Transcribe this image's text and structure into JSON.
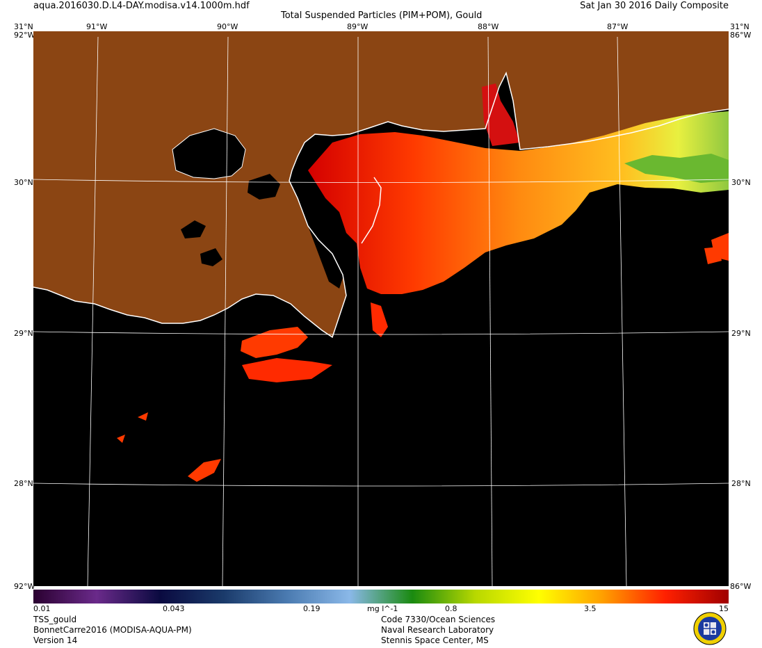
{
  "header": {
    "filename": "aqua.2016030.D.L4-DAY.modisa.v14.1000m.hdf",
    "title": "Total Suspended Particles (PIM+POM), Gould",
    "date": "Sat Jan 30 2016 Daily Composite"
  },
  "map": {
    "lon_top": [
      "91°W",
      "90°W",
      "89°W",
      "88°W",
      "87°W"
    ],
    "lat_left": [
      "30°N",
      "29°N",
      "28°N"
    ],
    "lat_right": [
      "30°N",
      "29°N",
      "28°N"
    ],
    "corner_top_left": "31°N",
    "corner_top_right": "31°N",
    "corner_top_right_w": "86°W",
    "corner_top_left_w": "92°W",
    "corner_bottom_left": "92°W",
    "corner_bottom_right": "86°W",
    "colors": {
      "land": "#8b4513",
      "water_nodata": "#000000",
      "coast": "#ffffff",
      "grid": "#ffffff"
    }
  },
  "colorbar": {
    "ticks": [
      "0.01",
      "0.043",
      "0.19",
      "0.8",
      "3.5",
      "15"
    ],
    "units": "mg l^-1",
    "stops": [
      "#2a0030",
      "#6a2a8a",
      "#0a0a40",
      "#1a3a6a",
      "#4a7ab0",
      "#8ab8e8",
      "#1a8a10",
      "#b8d800",
      "#ffff00",
      "#ffa000",
      "#ff2000",
      "#a00000"
    ]
  },
  "footer": {
    "left": [
      "TSS_gould",
      "BonnetCarre2016 (MODISA-AQUA-PM)",
      "Version 14"
    ],
    "center": [
      "Code 7330/Ocean Sciences",
      "Naval Research Laboratory",
      "Stennis Space Center, MS"
    ]
  }
}
